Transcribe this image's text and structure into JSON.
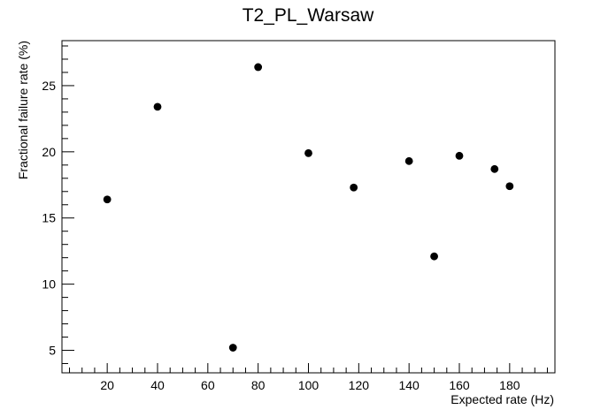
{
  "chart_data": {
    "type": "scatter",
    "title": "T2_PL_Warsaw",
    "xlabel": "Expected rate (Hz)",
    "ylabel": "Fractional failure rate (%)",
    "xlim": [
      2,
      198
    ],
    "ylim": [
      3.3,
      28.4
    ],
    "x_ticks": [
      20,
      40,
      60,
      80,
      100,
      120,
      140,
      160,
      180
    ],
    "x_tick_labels": [
      "20",
      "40",
      "60",
      "80",
      "100",
      "120",
      "140",
      "160",
      "180"
    ],
    "y_ticks": [
      5,
      10,
      15,
      20,
      25
    ],
    "y_tick_labels": [
      "5",
      "10",
      "15",
      "20",
      "25"
    ],
    "grid": false,
    "legend": "none",
    "marker_color": "#000000",
    "points": [
      {
        "x": 20,
        "y": 16.4
      },
      {
        "x": 40,
        "y": 23.4
      },
      {
        "x": 70,
        "y": 5.2
      },
      {
        "x": 80,
        "y": 26.4
      },
      {
        "x": 100,
        "y": 19.9
      },
      {
        "x": 118,
        "y": 17.3
      },
      {
        "x": 140,
        "y": 19.3
      },
      {
        "x": 150,
        "y": 12.1
      },
      {
        "x": 160,
        "y": 19.7
      },
      {
        "x": 174,
        "y": 18.7
      },
      {
        "x": 180,
        "y": 17.4
      }
    ]
  }
}
